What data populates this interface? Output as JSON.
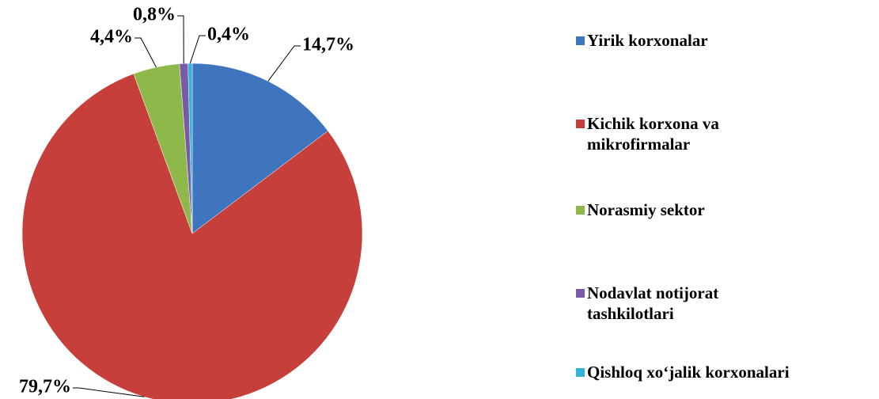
{
  "chart_data": {
    "type": "pie",
    "categories": [
      "Yirik korxonalar",
      "Kichik korxona va mikrofirmalar",
      "Norasmiy sektor",
      "Nodavlat notijorat tashkilotlari",
      "Qishloq xo‘jalik korxonalari"
    ],
    "values": [
      14.7,
      79.7,
      4.4,
      0.8,
      0.4
    ],
    "value_labels": [
      "14,7%",
      "79,7%",
      "4,4%",
      "0,8%",
      "0,4%"
    ],
    "colors": [
      "#3f74bf",
      "#c63f3b",
      "#8fb84a",
      "#7a59a5",
      "#33b3d8"
    ],
    "legend": "right"
  }
}
